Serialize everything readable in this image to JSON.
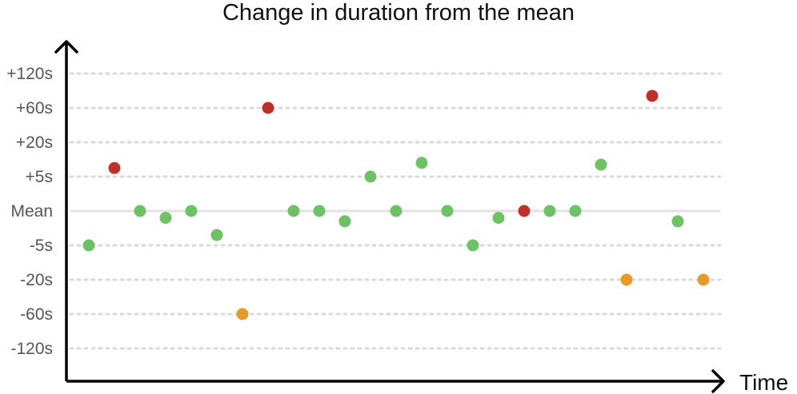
{
  "chart_data": {
    "type": "scatter",
    "title": "Change in duration from the mean",
    "xlabel": "Time",
    "ylabel": "",
    "y_categories": [
      "+120s",
      "+60s",
      "+20s",
      "+5s",
      "Mean",
      "-5s",
      "-20s",
      "-60s",
      "-120s"
    ],
    "grid": true,
    "colors": {
      "normal": "#6cc264",
      "slow": "#c0302a",
      "fast": "#e59a2a",
      "mean_line": "#e2e2e2",
      "grid": "#d9d9d9"
    },
    "points": [
      {
        "x": 1,
        "y": "-5s",
        "status": "normal"
      },
      {
        "x": 2,
        "y": "+5s",
        "status": "slow",
        "offset": -0.25
      },
      {
        "x": 3,
        "y": "Mean",
        "status": "normal"
      },
      {
        "x": 4,
        "y": "Mean",
        "status": "normal",
        "offset": 0.2
      },
      {
        "x": 5,
        "y": "Mean",
        "status": "normal"
      },
      {
        "x": 6,
        "y": "-5s",
        "status": "normal",
        "offset": -0.3
      },
      {
        "x": 7,
        "y": "-60s",
        "status": "fast"
      },
      {
        "x": 8,
        "y": "+60s",
        "status": "slow"
      },
      {
        "x": 9,
        "y": "Mean",
        "status": "normal"
      },
      {
        "x": 10,
        "y": "Mean",
        "status": "normal"
      },
      {
        "x": 11,
        "y": "-5s",
        "status": "normal",
        "offset": -0.7
      },
      {
        "x": 12,
        "y": "+5s",
        "status": "normal"
      },
      {
        "x": 13,
        "y": "Mean",
        "status": "normal"
      },
      {
        "x": 14,
        "y": "+5s",
        "status": "normal",
        "offset": -0.4
      },
      {
        "x": 15,
        "y": "Mean",
        "status": "normal"
      },
      {
        "x": 16,
        "y": "-5s",
        "status": "normal"
      },
      {
        "x": 17,
        "y": "-5s",
        "status": "normal",
        "offset": -0.8
      },
      {
        "x": 18,
        "y": "Mean",
        "status": "slow"
      },
      {
        "x": 19,
        "y": "Mean",
        "status": "normal"
      },
      {
        "x": 20,
        "y": "Mean",
        "status": "normal"
      },
      {
        "x": 21,
        "y": "+5s",
        "status": "normal",
        "offset": -0.35
      },
      {
        "x": 22,
        "y": "-20s",
        "status": "fast"
      },
      {
        "x": 23,
        "y": "+60s",
        "status": "slow",
        "offset": -0.35
      },
      {
        "x": 24,
        "y": "-5s",
        "status": "normal",
        "offset": -0.7
      },
      {
        "x": 25,
        "y": "-20s",
        "status": "fast"
      }
    ]
  }
}
